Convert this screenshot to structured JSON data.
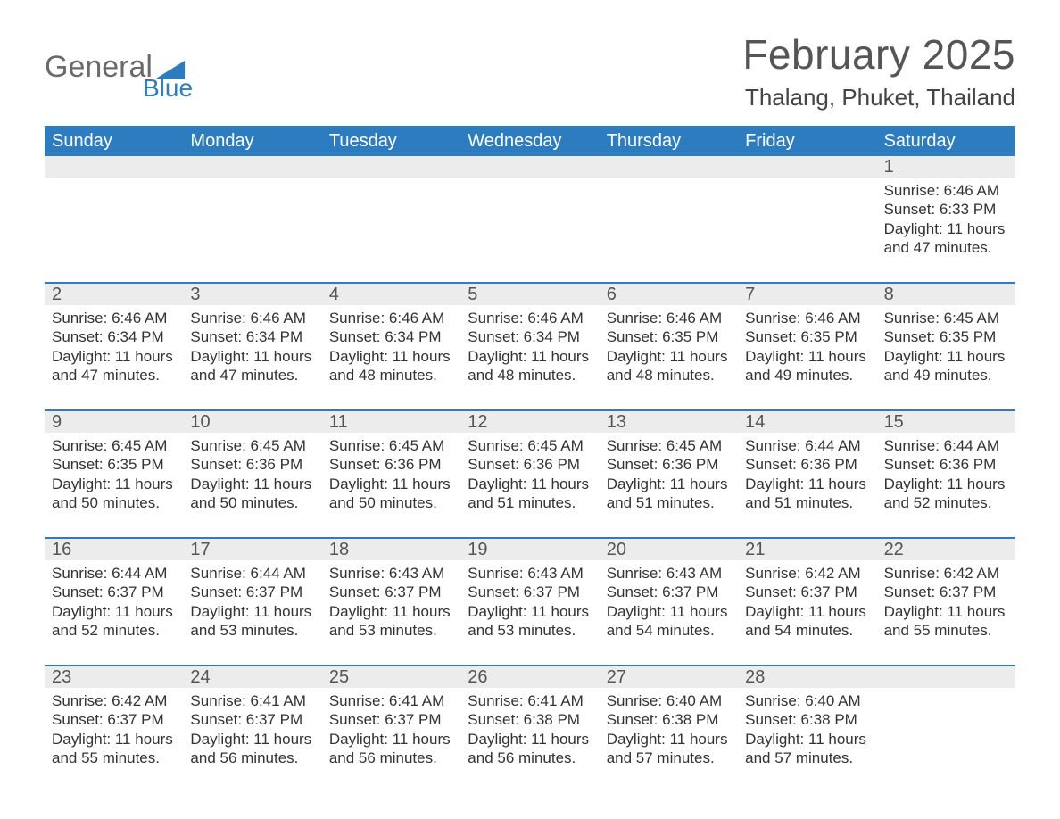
{
  "logo": {
    "text1": "General",
    "text2": "Blue"
  },
  "title": "February 2025",
  "subtitle": "Thalang, Phuket, Thailand",
  "colors": {
    "header_bg": "#2e7cc0",
    "header_text": "#ffffff",
    "daynum_bg": "#ececec",
    "border": "#2e7cc0",
    "page_bg": "#ffffff",
    "body_text": "#333333",
    "title_text": "#555555",
    "logo_gray": "#6a6a6a",
    "logo_blue": "#2e7cc0"
  },
  "typography": {
    "title_fontsize": 46,
    "subtitle_fontsize": 26,
    "weekday_fontsize": 20,
    "daynum_fontsize": 20,
    "info_fontsize": 17,
    "font_family": "Segoe UI"
  },
  "layout": {
    "columns": 7,
    "rows": 5,
    "cell_min_height": 120
  },
  "weekdays": [
    "Sunday",
    "Monday",
    "Tuesday",
    "Wednesday",
    "Thursday",
    "Friday",
    "Saturday"
  ],
  "labels": {
    "sunrise_prefix": "Sunrise: ",
    "sunset_prefix": "Sunset: ",
    "daylight_prefix": "Daylight: "
  },
  "weeks": [
    [
      {
        "blank": true
      },
      {
        "blank": true
      },
      {
        "blank": true
      },
      {
        "blank": true
      },
      {
        "blank": true
      },
      {
        "blank": true
      },
      {
        "day": "1",
        "sunrise": "6:46 AM",
        "sunset": "6:33 PM",
        "daylight": "11 hours and 47 minutes."
      }
    ],
    [
      {
        "day": "2",
        "sunrise": "6:46 AM",
        "sunset": "6:34 PM",
        "daylight": "11 hours and 47 minutes."
      },
      {
        "day": "3",
        "sunrise": "6:46 AM",
        "sunset": "6:34 PM",
        "daylight": "11 hours and 47 minutes."
      },
      {
        "day": "4",
        "sunrise": "6:46 AM",
        "sunset": "6:34 PM",
        "daylight": "11 hours and 48 minutes."
      },
      {
        "day": "5",
        "sunrise": "6:46 AM",
        "sunset": "6:34 PM",
        "daylight": "11 hours and 48 minutes."
      },
      {
        "day": "6",
        "sunrise": "6:46 AM",
        "sunset": "6:35 PM",
        "daylight": "11 hours and 48 minutes."
      },
      {
        "day": "7",
        "sunrise": "6:46 AM",
        "sunset": "6:35 PM",
        "daylight": "11 hours and 49 minutes."
      },
      {
        "day": "8",
        "sunrise": "6:45 AM",
        "sunset": "6:35 PM",
        "daylight": "11 hours and 49 minutes."
      }
    ],
    [
      {
        "day": "9",
        "sunrise": "6:45 AM",
        "sunset": "6:35 PM",
        "daylight": "11 hours and 50 minutes."
      },
      {
        "day": "10",
        "sunrise": "6:45 AM",
        "sunset": "6:36 PM",
        "daylight": "11 hours and 50 minutes."
      },
      {
        "day": "11",
        "sunrise": "6:45 AM",
        "sunset": "6:36 PM",
        "daylight": "11 hours and 50 minutes."
      },
      {
        "day": "12",
        "sunrise": "6:45 AM",
        "sunset": "6:36 PM",
        "daylight": "11 hours and 51 minutes."
      },
      {
        "day": "13",
        "sunrise": "6:45 AM",
        "sunset": "6:36 PM",
        "daylight": "11 hours and 51 minutes."
      },
      {
        "day": "14",
        "sunrise": "6:44 AM",
        "sunset": "6:36 PM",
        "daylight": "11 hours and 51 minutes."
      },
      {
        "day": "15",
        "sunrise": "6:44 AM",
        "sunset": "6:36 PM",
        "daylight": "11 hours and 52 minutes."
      }
    ],
    [
      {
        "day": "16",
        "sunrise": "6:44 AM",
        "sunset": "6:37 PM",
        "daylight": "11 hours and 52 minutes."
      },
      {
        "day": "17",
        "sunrise": "6:44 AM",
        "sunset": "6:37 PM",
        "daylight": "11 hours and 53 minutes."
      },
      {
        "day": "18",
        "sunrise": "6:43 AM",
        "sunset": "6:37 PM",
        "daylight": "11 hours and 53 minutes."
      },
      {
        "day": "19",
        "sunrise": "6:43 AM",
        "sunset": "6:37 PM",
        "daylight": "11 hours and 53 minutes."
      },
      {
        "day": "20",
        "sunrise": "6:43 AM",
        "sunset": "6:37 PM",
        "daylight": "11 hours and 54 minutes."
      },
      {
        "day": "21",
        "sunrise": "6:42 AM",
        "sunset": "6:37 PM",
        "daylight": "11 hours and 54 minutes."
      },
      {
        "day": "22",
        "sunrise": "6:42 AM",
        "sunset": "6:37 PM",
        "daylight": "11 hours and 55 minutes."
      }
    ],
    [
      {
        "day": "23",
        "sunrise": "6:42 AM",
        "sunset": "6:37 PM",
        "daylight": "11 hours and 55 minutes."
      },
      {
        "day": "24",
        "sunrise": "6:41 AM",
        "sunset": "6:37 PM",
        "daylight": "11 hours and 56 minutes."
      },
      {
        "day": "25",
        "sunrise": "6:41 AM",
        "sunset": "6:37 PM",
        "daylight": "11 hours and 56 minutes."
      },
      {
        "day": "26",
        "sunrise": "6:41 AM",
        "sunset": "6:38 PM",
        "daylight": "11 hours and 56 minutes."
      },
      {
        "day": "27",
        "sunrise": "6:40 AM",
        "sunset": "6:38 PM",
        "daylight": "11 hours and 57 minutes."
      },
      {
        "day": "28",
        "sunrise": "6:40 AM",
        "sunset": "6:38 PM",
        "daylight": "11 hours and 57 minutes."
      },
      {
        "blank": true
      }
    ]
  ]
}
